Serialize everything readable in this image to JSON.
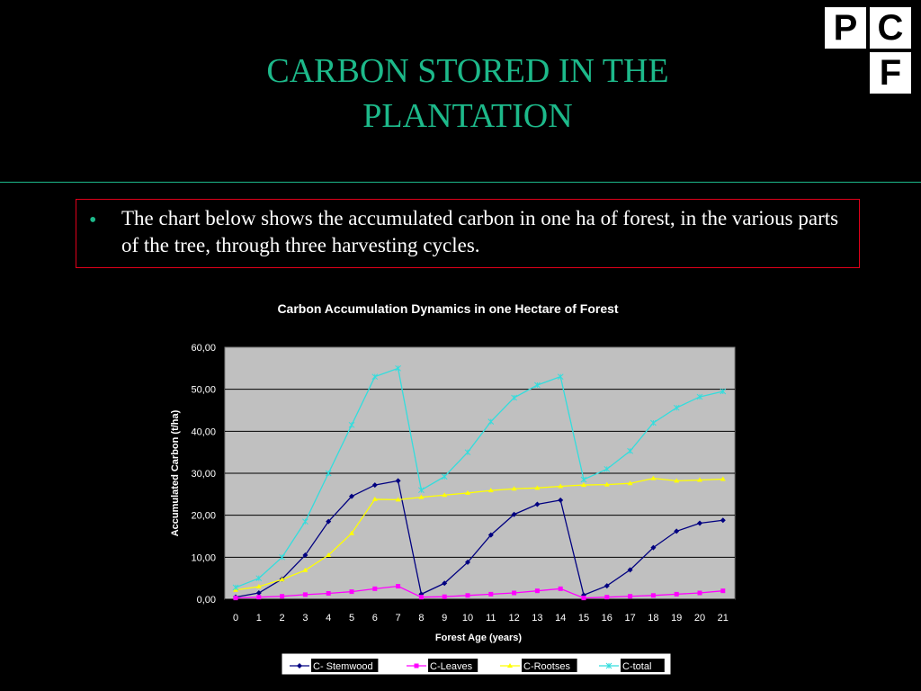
{
  "slide": {
    "title_line1": "CARBON STORED IN THE",
    "title_line2": "PLANTATION",
    "bullet": "The chart below shows the accumulated carbon in one ha of  forest, in the various parts of the tree, through  three harvesting cycles.",
    "title_color": "#1db98a",
    "box_border_color": "#e0001a"
  },
  "logo": {
    "p": "P",
    "c": "C",
    "f": "F"
  },
  "chart_data": {
    "type": "line",
    "title": "Carbon Accumulation Dynamics in one Hectare of Forest",
    "xlabel": "Forest  Age (years)",
    "ylabel": "Accumulated Carbon (t/ha)",
    "ylim": [
      0,
      60
    ],
    "yticks": [
      "0,00",
      "10,00",
      "20,00",
      "30,00",
      "40,00",
      "50,00",
      "60,00"
    ],
    "x": [
      0,
      1,
      2,
      3,
      4,
      5,
      6,
      7,
      8,
      9,
      10,
      11,
      12,
      13,
      14,
      15,
      16,
      17,
      18,
      19,
      20,
      21
    ],
    "plot_background": "#c0c0c0",
    "grid": true,
    "legend_position": "bottom",
    "series": [
      {
        "name": "C- Stemwood",
        "color": "#000080",
        "marker": "diamond",
        "values": [
          0.5,
          1.5,
          4.8,
          10.5,
          18.5,
          24.5,
          27.2,
          28.2,
          1.2,
          3.8,
          8.8,
          15.3,
          20.2,
          22.6,
          23.6,
          1.0,
          3.2,
          7.0,
          12.3,
          16.2,
          18.1,
          18.8
        ]
      },
      {
        "name": "C-Leaves",
        "color": "#ff00ff",
        "marker": "square",
        "values": [
          0.3,
          0.5,
          0.7,
          1.1,
          1.4,
          1.8,
          2.5,
          3.1,
          0.5,
          0.6,
          0.9,
          1.2,
          1.5,
          2.0,
          2.5,
          0.3,
          0.5,
          0.7,
          0.9,
          1.2,
          1.5,
          2.0
        ]
      },
      {
        "name": "C-Rootses",
        "color": "#ffff00",
        "marker": "triangle",
        "values": [
          2.2,
          3.0,
          4.7,
          6.9,
          10.5,
          15.7,
          23.8,
          23.7,
          24.3,
          24.8,
          25.3,
          25.9,
          26.3,
          26.5,
          26.9,
          27.2,
          27.3,
          27.6,
          28.8,
          28.2,
          28.4,
          28.6
        ]
      },
      {
        "name": "C-total",
        "color": "#33dddd",
        "marker": "star",
        "values": [
          2.8,
          5.0,
          10.0,
          18.5,
          30.0,
          41.5,
          53.0,
          55.0,
          26.0,
          29.2,
          35.0,
          42.3,
          48.0,
          51.0,
          53.0,
          28.5,
          31.0,
          35.3,
          42.0,
          45.6,
          48.2,
          49.5
        ]
      }
    ]
  }
}
